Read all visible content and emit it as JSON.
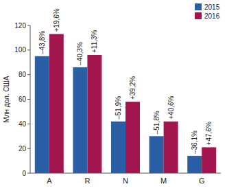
{
  "chart_data": {
    "type": "bar",
    "y_label": "Млн дол. США",
    "categories": [
      "A",
      "R",
      "N",
      "M",
      "G"
    ],
    "series": [
      {
        "name": "2015",
        "color": "#2a5fa5",
        "values": [
          95,
          86,
          42,
          30,
          14
        ],
        "annotations": [
          "–43,8%",
          "–40,3%",
          "–51,9%",
          "–51,8%",
          "–36,1%"
        ]
      },
      {
        "name": "2016",
        "color": "#a3154f",
        "values": [
          113,
          96,
          58,
          42,
          21
        ],
        "annotations": [
          "+19,6%",
          "+11,3%",
          "+39,2%",
          "+40,6%",
          "+47,6%"
        ]
      }
    ],
    "ylim": [
      0,
      120
    ],
    "yticks": [
      0,
      20,
      40,
      60,
      80,
      100,
      120
    ],
    "grid": false,
    "legend": "top-right"
  }
}
